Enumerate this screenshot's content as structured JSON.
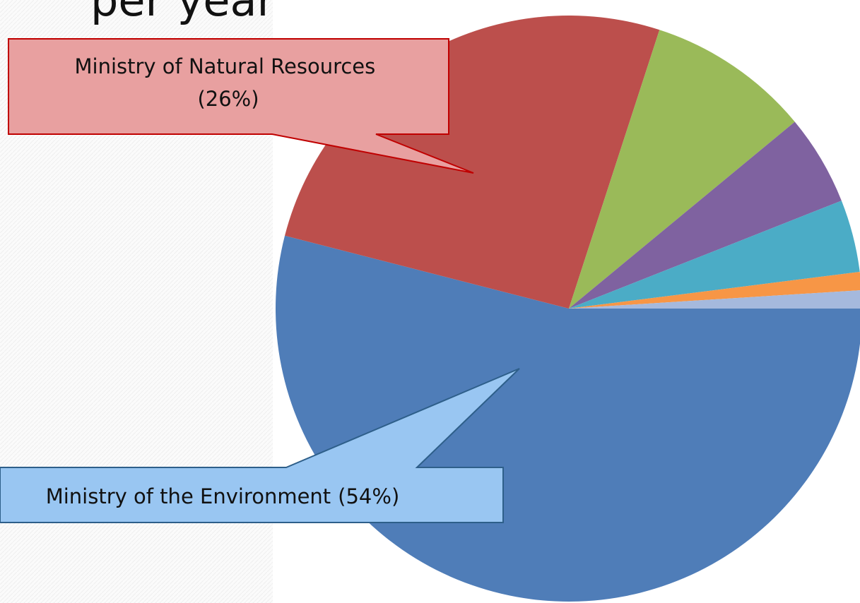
{
  "chart_data": {
    "type": "pie",
    "title": "per year",
    "categories": [
      "Ministry of the Environment",
      "Ministry of Natural Resources",
      null,
      null,
      null,
      null,
      null
    ],
    "values": [
      54,
      26,
      9,
      5,
      4,
      1,
      1
    ],
    "value_labels": [
      "(54%)",
      "(26%)",
      null,
      null,
      null,
      null,
      null
    ],
    "colors": [
      "#4f7db8",
      "#bc4f4c",
      "#9aba59",
      "#7f62a0",
      "#4bacc6",
      "#f79646",
      "#a5b9dd"
    ]
  }
}
